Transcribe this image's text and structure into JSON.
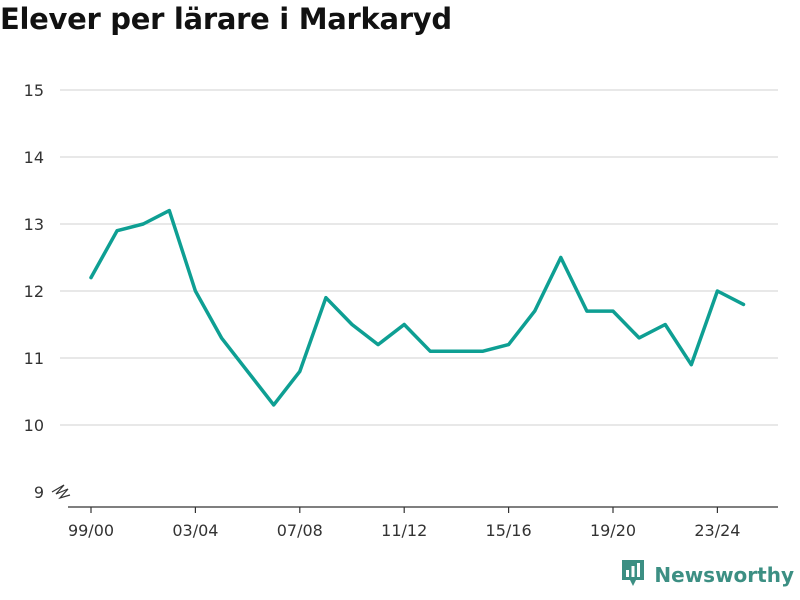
{
  "chart_data": {
    "type": "line",
    "title": "Elever per lärare i Markaryd",
    "xlabel": "",
    "ylabel": "",
    "ylim": [
      9,
      15
    ],
    "yticks": [
      "9",
      "10",
      "11",
      "12",
      "13",
      "14",
      "15"
    ],
    "xtick_labels": [
      "99/00",
      "03/04",
      "07/08",
      "11/12",
      "15/16",
      "19/20",
      "23/24"
    ],
    "x": [
      "99/00",
      "00/01",
      "01/02",
      "02/03",
      "03/04",
      "04/05",
      "05/06",
      "06/07",
      "07/08",
      "08/09",
      "09/10",
      "10/11",
      "11/12",
      "12/13",
      "13/14",
      "14/15",
      "15/16",
      "16/17",
      "17/18",
      "18/19",
      "19/20",
      "20/21",
      "21/22",
      "22/23",
      "23/24",
      "24/25"
    ],
    "values": [
      12.2,
      12.9,
      13.0,
      13.2,
      12.0,
      11.3,
      10.8,
      10.3,
      10.8,
      11.9,
      11.5,
      11.2,
      11.5,
      11.1,
      11.1,
      11.1,
      11.2,
      11.7,
      12.5,
      11.7,
      11.7,
      11.3,
      11.5,
      10.9,
      12.0,
      11.8
    ],
    "line_color": "#0e9f93",
    "grid": true,
    "axis_break": true
  },
  "brand": {
    "name": "Newsworthy",
    "icon": "newsworthy-logo-icon",
    "color": "#3c8f83"
  }
}
